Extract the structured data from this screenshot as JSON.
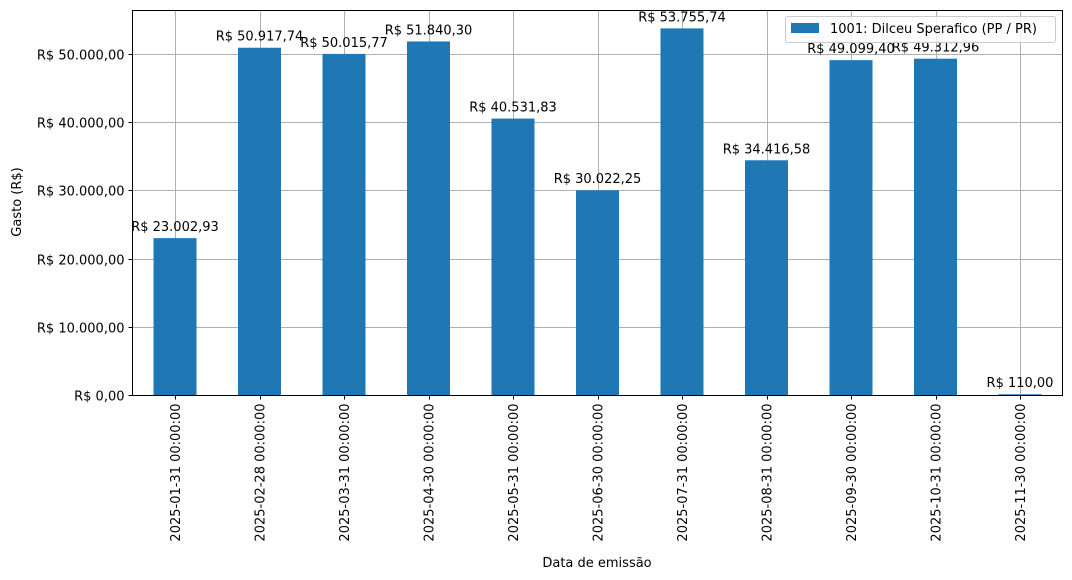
{
  "chart_data": {
    "type": "bar",
    "title": "",
    "xlabel": "Data de emissão",
    "ylabel": "Gasto (R$)",
    "ylim": [
      0,
      56450
    ],
    "grid": true,
    "legend_position": "upper right",
    "bar_color": "#1f77b4",
    "categories": [
      "2025-01-31 00:00:00",
      "2025-02-28 00:00:00",
      "2025-03-31 00:00:00",
      "2025-04-30 00:00:00",
      "2025-05-31 00:00:00",
      "2025-06-30 00:00:00",
      "2025-07-31 00:00:00",
      "2025-08-31 00:00:00",
      "2025-09-30 00:00:00",
      "2025-10-31 00:00:00",
      "2025-11-30 00:00:00"
    ],
    "series": [
      {
        "name": "1001: Dilceu Sperafico (PP / PR)",
        "values": [
          23002.93,
          50917.74,
          50015.77,
          51840.3,
          40531.83,
          30022.25,
          53755.74,
          34416.58,
          49099.4,
          49312.96,
          110.0
        ],
        "labels": [
          "R$ 23.002,93",
          "R$ 50.917,74",
          "R$ 50.015,77",
          "R$ 51.840,30",
          "R$ 40.531,83",
          "R$ 30.022,25",
          "R$ 53.755,74",
          "R$ 34.416,58",
          "R$ 49.099,40",
          "R$ 49.312,96",
          "R$ 110,00"
        ]
      }
    ],
    "yticks": [
      0,
      10000,
      20000,
      30000,
      40000,
      50000
    ],
    "ytick_labels": [
      "R$ 0,00",
      "R$ 10.000,00",
      "R$ 20.000,00",
      "R$ 30.000,00",
      "R$ 40.000,00",
      "R$ 50.000,00"
    ]
  }
}
